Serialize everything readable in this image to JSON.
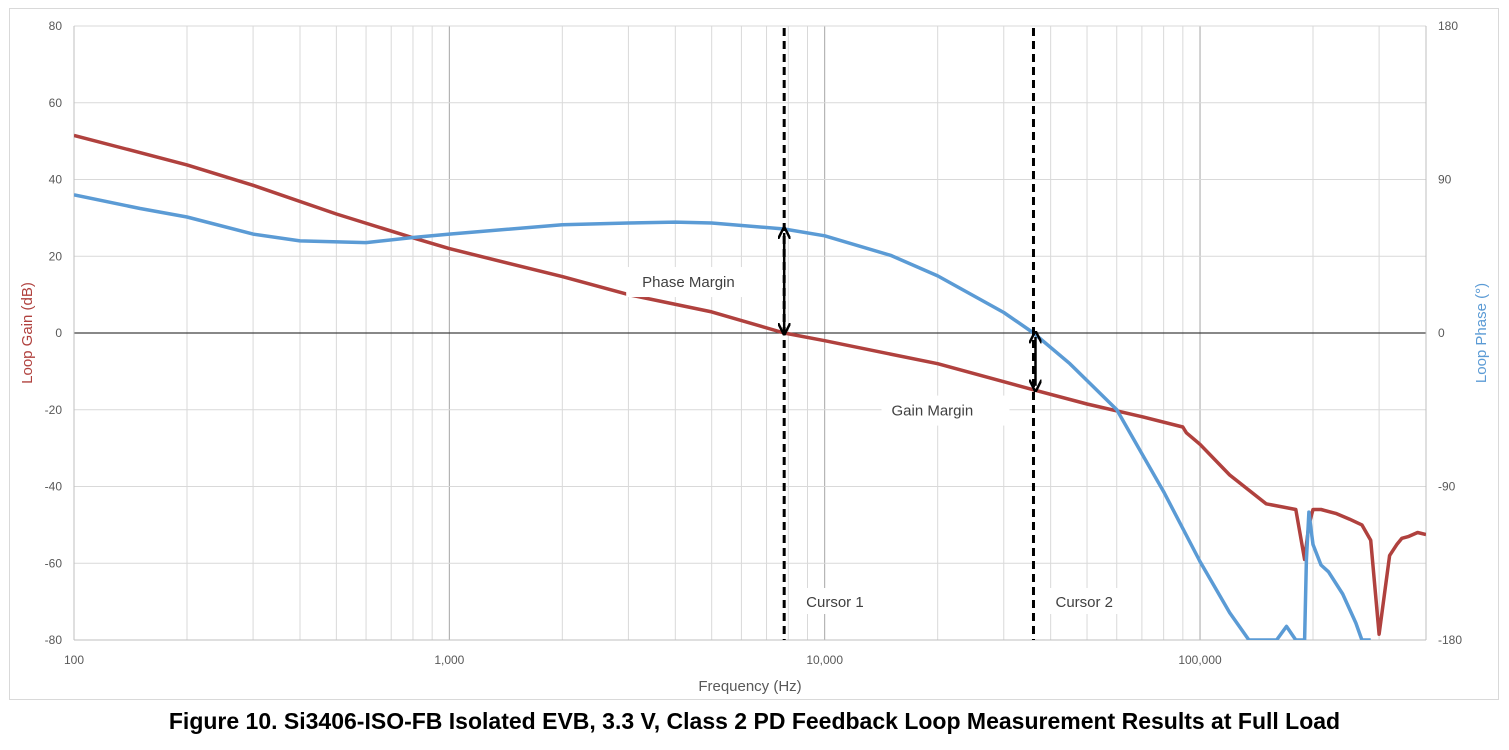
{
  "caption": "Figure 10. Si3406-ISO-FB Isolated EVB, 3.3 V, Class 2 PD Feedback Loop Measurement Results at Full Load",
  "chart_data": {
    "type": "line",
    "title": "",
    "xlabel": "Frequency (Hz)",
    "ylabel_left": "Loop Gain (dB)",
    "ylabel_right": "Loop Phase (°)",
    "x_scale": "log",
    "xlim": [
      100,
      400000
    ],
    "ylim_left": [
      -80,
      80
    ],
    "ylim_right": [
      -180,
      180
    ],
    "x_ticks": [
      100,
      1000,
      10000,
      100000
    ],
    "x_tick_labels": [
      "100",
      "1,000",
      "10,000",
      "100,000"
    ],
    "y_left_ticks": [
      -80,
      -60,
      -40,
      -20,
      0,
      20,
      40,
      60,
      80
    ],
    "y_left_tick_labels": [
      "-80",
      "-60",
      "-40",
      "-20",
      "0",
      "20",
      "40",
      "60",
      "80"
    ],
    "y_right_ticks": [
      -180,
      -90,
      0,
      90,
      180
    ],
    "y_right_tick_labels": [
      "-180",
      "-90",
      "0",
      "90",
      "180"
    ],
    "grid": true,
    "colors": {
      "gain": "#b0413e",
      "phase": "#5b9bd5",
      "cursor": "#000000",
      "grid_major": "#a6a6a6",
      "grid_minor": "#d9d9d9"
    },
    "series": [
      {
        "axis": "left",
        "x": [
          100,
          200,
          300,
          500,
          800,
          1000,
          2000,
          3000,
          5000,
          7800,
          10000,
          20000,
          36000,
          50000,
          70000,
          90000,
          92000,
          100000,
          120000,
          150000,
          180000,
          190000,
          195000,
          200000,
          210000,
          230000,
          250000,
          270000,
          285000,
          300000,
          320000,
          335000,
          345000,
          360000,
          380000,
          400000
        ],
        "y": [
          51.5,
          43.8,
          38.5,
          31.0,
          24.8,
          22.0,
          14.7,
          10.0,
          5.5,
          0,
          -2.0,
          -8.0,
          -14.8,
          -18.5,
          -21.8,
          -24.5,
          -26.0,
          -29.0,
          -37.0,
          -44.5,
          -46.0,
          -59.0,
          -50.0,
          -46.0,
          -46.0,
          -47.0,
          -48.5,
          -50.0,
          -54.0,
          -78.5,
          -58.0,
          -55.0,
          -53.5,
          -53.0,
          -52.0,
          -52.5
        ]
      },
      {
        "axis": "right",
        "x": [
          100,
          150,
          200,
          300,
          400,
          600,
          800,
          1000,
          2000,
          3000,
          4000,
          5000,
          7800,
          10000,
          15000,
          20000,
          30000,
          36000,
          45000,
          60000,
          80000,
          100000,
          120000,
          135000,
          150000,
          160000,
          170000,
          180000,
          185000,
          190000,
          192000,
          195000,
          200000,
          210000,
          220000,
          240000,
          260000,
          270000,
          285000
        ],
        "y": [
          81,
          73,
          68,
          58,
          54,
          53,
          56,
          58,
          63.5,
          64.5,
          65,
          64.5,
          61,
          57,
          45.5,
          33.5,
          12,
          0,
          -18,
          -45,
          -93,
          -134,
          -164,
          -180,
          -180,
          -180,
          -172,
          -180,
          -180,
          -180,
          -133,
          -105,
          -124,
          -136,
          -140,
          -153,
          -170,
          -180,
          -180
        ]
      }
    ],
    "cursors": [
      {
        "label": "Cursor 1",
        "x": 7800
      },
      {
        "label": "Cursor 2",
        "x": 36000
      }
    ],
    "annotations": [
      {
        "text": "Phase Margin",
        "x": 7800,
        "y_from_left": 0,
        "y_to_phase": 61
      },
      {
        "text": "Gain Margin",
        "x": 36000,
        "y_from_left": 0,
        "y_to_left": -14.8
      }
    ]
  }
}
